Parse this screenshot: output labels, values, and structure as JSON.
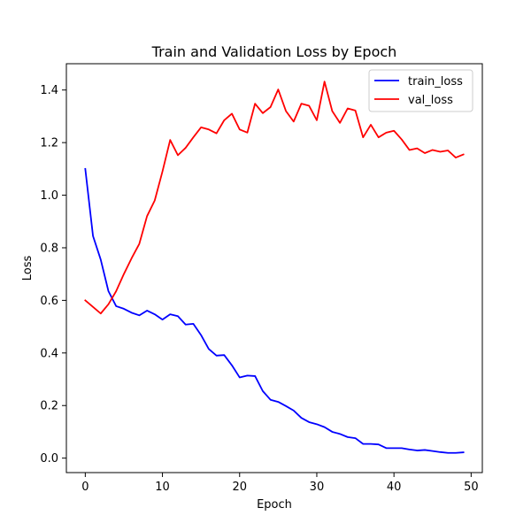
{
  "chart_data": {
    "type": "line",
    "title": "Train and Validation Loss by Epoch",
    "xlabel": "Epoch",
    "ylabel": "Loss",
    "xlim": [
      -2.45,
      51.45
    ],
    "ylim": [
      -0.055,
      1.5
    ],
    "xticks": [
      0,
      10,
      20,
      30,
      40,
      50
    ],
    "xtick_labels": [
      "0",
      "10",
      "20",
      "30",
      "40",
      "50"
    ],
    "yticks": [
      0.0,
      0.2,
      0.4,
      0.6,
      0.8,
      1.0,
      1.2,
      1.4
    ],
    "ytick_labels": [
      "0.0",
      "0.2",
      "0.4",
      "0.6",
      "0.8",
      "1.0",
      "1.2",
      "1.4"
    ],
    "grid": false,
    "legend_position": "top-right",
    "x": [
      0,
      1,
      2,
      3,
      4,
      5,
      6,
      7,
      8,
      9,
      10,
      11,
      12,
      13,
      14,
      15,
      16,
      17,
      18,
      19,
      20,
      21,
      22,
      23,
      24,
      25,
      26,
      27,
      28,
      29,
      30,
      31,
      32,
      33,
      34,
      35,
      36,
      37,
      38,
      39,
      40,
      41,
      42,
      43,
      44,
      45,
      46,
      47,
      48,
      49
    ],
    "series": [
      {
        "name": "train_loss",
        "color": "#0000ff",
        "values": [
          1.1,
          0.845,
          0.755,
          0.635,
          0.578,
          0.568,
          0.553,
          0.543,
          0.561,
          0.547,
          0.527,
          0.547,
          0.54,
          0.508,
          0.511,
          0.468,
          0.415,
          0.39,
          0.392,
          0.353,
          0.307,
          0.314,
          0.312,
          0.255,
          0.222,
          0.214,
          0.198,
          0.181,
          0.153,
          0.137,
          0.129,
          0.118,
          0.1,
          0.092,
          0.08,
          0.076,
          0.054,
          0.054,
          0.052,
          0.038,
          0.038,
          0.038,
          0.033,
          0.029,
          0.031,
          0.027,
          0.023,
          0.02,
          0.02,
          0.022
        ]
      },
      {
        "name": "val_loss",
        "color": "#ff0000",
        "values": [
          0.6,
          0.575,
          0.55,
          0.585,
          0.635,
          0.7,
          0.76,
          0.815,
          0.92,
          0.98,
          1.09,
          1.21,
          1.152,
          1.18,
          1.22,
          1.258,
          1.25,
          1.235,
          1.285,
          1.31,
          1.25,
          1.238,
          1.348,
          1.312,
          1.335,
          1.402,
          1.32,
          1.28,
          1.348,
          1.34,
          1.285,
          1.432,
          1.32,
          1.275,
          1.33,
          1.322,
          1.22,
          1.268,
          1.22,
          1.238,
          1.245,
          1.212,
          1.172,
          1.178,
          1.16,
          1.172,
          1.165,
          1.17,
          1.143,
          1.155
        ]
      }
    ]
  }
}
